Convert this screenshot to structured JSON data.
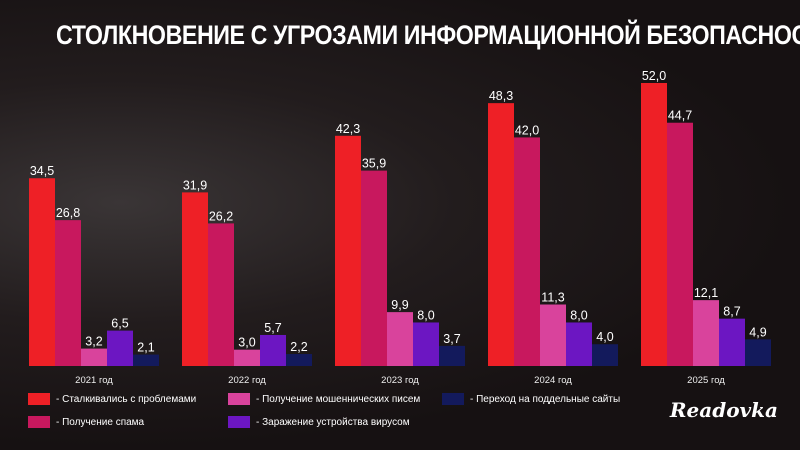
{
  "title": "СТОЛКНОВЕНИЕ С УГРОЗАМИ ИНФОРМАЦИОННОЙ БЕЗОПАСНОСТИ",
  "logo": "Readovka",
  "chart_data": {
    "type": "bar",
    "title": "СТОЛКНОВЕНИЕ С УГРОЗАМИ ИНФОРМАЦИОННОЙ БЕЗОПАСНОСТИ",
    "categories": [
      "2021 год",
      "2022 год",
      "2023 год",
      "2024 год",
      "2025 год"
    ],
    "series": [
      {
        "name": "- Сталкивались с проблемами",
        "color": "#ee2026",
        "values": [
          34.5,
          31.9,
          42.3,
          48.3,
          52.0
        ],
        "labels": [
          "34,5",
          "31,9",
          "42,3",
          "48,3",
          "52,0"
        ]
      },
      {
        "name": "- Получение спама",
        "color": "#c8185e",
        "values": [
          26.8,
          26.2,
          35.9,
          42.0,
          44.7
        ],
        "labels": [
          "26,8",
          "26,2",
          "35,9",
          "42,0",
          "44,7"
        ]
      },
      {
        "name": "- Получение мошеннических писем",
        "color": "#d9439c",
        "values": [
          3.2,
          3.0,
          9.9,
          11.3,
          12.1
        ],
        "labels": [
          "3,2",
          "3,0",
          "9,9",
          "11,3",
          "12,1"
        ]
      },
      {
        "name": "- Заражение устройства вирусом",
        "color": "#6c16c2",
        "values": [
          6.5,
          5.7,
          8.0,
          8.0,
          8.7
        ],
        "labels": [
          "6,5",
          "5,7",
          "8,0",
          "8,0",
          "8,7"
        ]
      },
      {
        "name": "- Переход на поддельные сайты",
        "color": "#131a5c",
        "values": [
          2.1,
          2.2,
          3.7,
          4.0,
          4.9
        ],
        "labels": [
          "2,1",
          "2,2",
          "3,7",
          "4,0",
          "4,9"
        ]
      }
    ],
    "ylim": [
      0,
      55
    ],
    "grid": false,
    "legend": "bottom"
  }
}
